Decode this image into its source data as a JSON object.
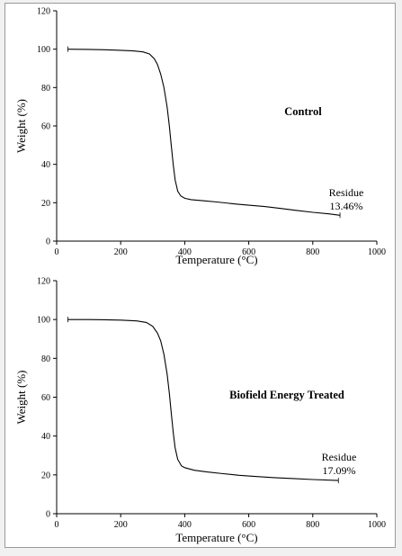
{
  "chart_data": [
    {
      "type": "line",
      "title": "",
      "xlabel": "Temperature (°C)",
      "ylabel": "Weight (%)",
      "xlim": [
        0,
        1000
      ],
      "ylim": [
        0,
        120
      ],
      "x_ticks": [
        0,
        200,
        400,
        600,
        800,
        1000
      ],
      "y_ticks": [
        0,
        20,
        40,
        60,
        80,
        100,
        120
      ],
      "series": [
        {
          "name": "Control",
          "color": "#000000",
          "points": [
            [
              35,
              100
            ],
            [
              100,
              99.9
            ],
            [
              150,
              99.7
            ],
            [
              200,
              99.4
            ],
            [
              240,
              99.1
            ],
            [
              270,
              98.6
            ],
            [
              290,
              97.5
            ],
            [
              305,
              95
            ],
            [
              315,
              92
            ],
            [
              325,
              87
            ],
            [
              335,
              80
            ],
            [
              345,
              70
            ],
            [
              352,
              60
            ],
            [
              358,
              50
            ],
            [
              364,
              40
            ],
            [
              370,
              32
            ],
            [
              378,
              26
            ],
            [
              388,
              23.5
            ],
            [
              400,
              22.3
            ],
            [
              420,
              21.6
            ],
            [
              460,
              21
            ],
            [
              500,
              20.4
            ],
            [
              560,
              19.3
            ],
            [
              600,
              18.7
            ],
            [
              650,
              18
            ],
            [
              700,
              17
            ],
            [
              750,
              16
            ],
            [
              800,
              15
            ],
            [
              850,
              14.2
            ],
            [
              885,
              13.46
            ]
          ]
        }
      ],
      "annotations": [
        "Residue",
        "13.46%"
      ],
      "grid": false,
      "legend": "none"
    },
    {
      "type": "line",
      "title": "",
      "xlabel": "Temperature (°C)",
      "ylabel": "Weight (%)",
      "xlim": [
        0,
        1000
      ],
      "ylim": [
        0,
        120
      ],
      "x_ticks": [
        0,
        200,
        400,
        600,
        800,
        1000
      ],
      "y_ticks": [
        0,
        20,
        40,
        60,
        80,
        100,
        120
      ],
      "series": [
        {
          "name": "Biofield Energy Treated",
          "color": "#000000",
          "points": [
            [
              35,
              100
            ],
            [
              100,
              100
            ],
            [
              150,
              99.9
            ],
            [
              200,
              99.7
            ],
            [
              250,
              99.3
            ],
            [
              280,
              98.5
            ],
            [
              300,
              96.5
            ],
            [
              315,
              93
            ],
            [
              325,
              89
            ],
            [
              335,
              82
            ],
            [
              345,
              72
            ],
            [
              352,
              62
            ],
            [
              358,
              52
            ],
            [
              364,
              42
            ],
            [
              370,
              34
            ],
            [
              378,
              28
            ],
            [
              390,
              24.6
            ],
            [
              400,
              23.7
            ],
            [
              430,
              22.4
            ],
            [
              470,
              21.5
            ],
            [
              520,
              20.6
            ],
            [
              570,
              19.8
            ],
            [
              620,
              19.2
            ],
            [
              680,
              18.6
            ],
            [
              740,
              18.1
            ],
            [
              800,
              17.6
            ],
            [
              880,
              17.09
            ]
          ]
        }
      ],
      "annotations": [
        "Residue",
        "17.09%"
      ],
      "grid": false,
      "legend": "none"
    }
  ]
}
